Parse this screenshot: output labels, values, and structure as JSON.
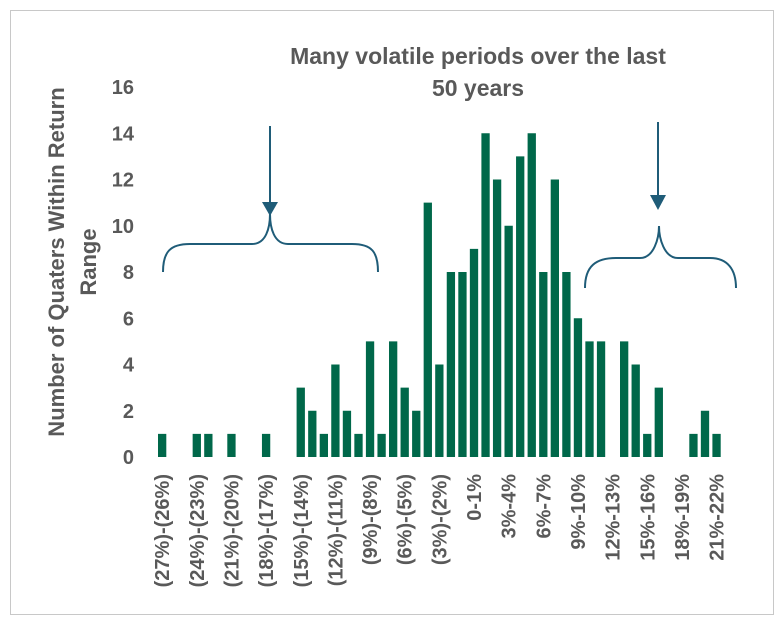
{
  "chart_data": {
    "type": "bar",
    "title_lines": [
      "Many volatile periods over the last",
      "50 years"
    ],
    "ylabel_lines": [
      "Number of Quaters Within Return",
      "Range"
    ],
    "xlabel": "",
    "ylim": [
      0,
      16
    ],
    "yticks": [
      0,
      2,
      4,
      6,
      8,
      10,
      12,
      14,
      16
    ],
    "grid": false,
    "legend": "none",
    "colors": {
      "bar": "#00684A",
      "annotation": "#1F5C78",
      "text": "#595959",
      "border": "#C8C8C8"
    },
    "categories": [
      "-27%",
      "-26%",
      "-25%",
      "-24%",
      "-23%",
      "-22%",
      "-21%",
      "-20%",
      "-19%",
      "-18%",
      "-17%",
      "-16%",
      "-15%",
      "-14%",
      "-13%",
      "-12%",
      "-11%",
      "-10%",
      "-9%",
      "-8%",
      "-7%",
      "-6%",
      "-5%",
      "-4%",
      "-3%",
      "-2%",
      "-1%",
      "0%",
      "1%",
      "2%",
      "3%",
      "4%",
      "5%",
      "6%",
      "7%",
      "8%",
      "9%",
      "10%",
      "11%",
      "12%",
      "13%",
      "14%",
      "15%",
      "16%",
      "17%",
      "18%",
      "19%",
      "20%",
      "21%",
      "22%",
      "23%"
    ],
    "values": [
      1,
      0,
      0,
      1,
      1,
      0,
      1,
      0,
      0,
      1,
      0,
      0,
      3,
      2,
      1,
      4,
      2,
      1,
      5,
      1,
      5,
      3,
      2,
      11,
      4,
      8,
      8,
      9,
      14,
      12,
      10,
      13,
      14,
      8,
      12,
      8,
      6,
      5,
      5,
      0,
      5,
      4,
      1,
      3,
      0,
      0,
      1,
      2,
      1,
      0,
      0
    ],
    "tick_labels": [
      {
        "index": 0,
        "text": "(27%)-(26%)"
      },
      {
        "index": 3,
        "text": "(24%)-(23%)"
      },
      {
        "index": 6,
        "text": "(21%)-(20%)"
      },
      {
        "index": 9,
        "text": "(18%)-(17%)"
      },
      {
        "index": 12,
        "text": "(15%)-(14%)"
      },
      {
        "index": 15,
        "text": "(12%)-(11%)"
      },
      {
        "index": 18,
        "text": "(9%)-(8%)"
      },
      {
        "index": 21,
        "text": "(6%)-(5%)"
      },
      {
        "index": 24,
        "text": "(3%)-(2%)"
      },
      {
        "index": 27,
        "text": "0-1%"
      },
      {
        "index": 30,
        "text": "3%-4%"
      },
      {
        "index": 33,
        "text": "6%-7%"
      },
      {
        "index": 36,
        "text": "9%-10%"
      },
      {
        "index": 39,
        "text": "12%-13%"
      },
      {
        "index": 42,
        "text": "15%-16%"
      },
      {
        "index": 45,
        "text": "18%-19%"
      },
      {
        "index": 48,
        "text": "21%-22%"
      }
    ],
    "annotations": [
      {
        "type": "brace-with-arrow",
        "target": "left tail"
      },
      {
        "type": "brace-with-arrow",
        "target": "right tail"
      }
    ]
  }
}
